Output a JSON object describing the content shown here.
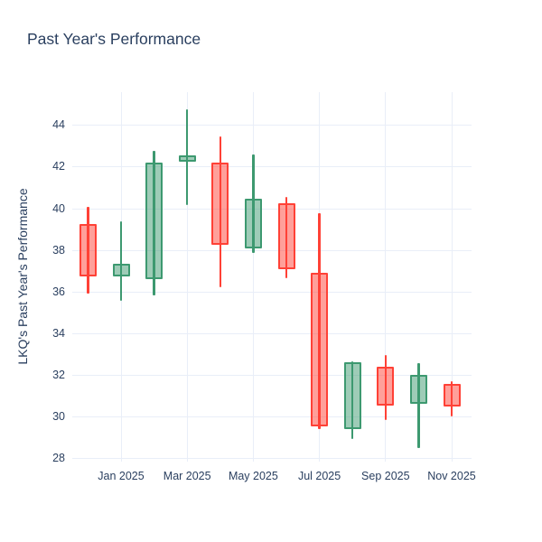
{
  "page": {
    "title": "Past Year's Performance",
    "background": "#ffffff"
  },
  "chart_data": {
    "type": "candlestick",
    "title": "Past Year's Performance",
    "xlabel": "",
    "ylabel": "LKQ's Past Year's Performance",
    "legend": "none",
    "grid": true,
    "ylim": [
      27.82,
      45.58
    ],
    "y_ticks": [
      28,
      30,
      32,
      34,
      36,
      38,
      40,
      42,
      44
    ],
    "x_tick_labels": [
      "Jan 2025",
      "Mar 2025",
      "May 2025",
      "Jul 2025",
      "Sep 2025",
      "Nov 2025"
    ],
    "x_tick_indices": [
      1,
      3,
      5,
      7,
      9,
      11
    ],
    "candles": [
      {
        "x": "Dec 2024",
        "open": 39.25,
        "high": 40.05,
        "low": 35.9,
        "close": 36.7,
        "direction": "decreasing"
      },
      {
        "x": "Jan 2025",
        "open": 36.7,
        "high": 39.35,
        "low": 35.55,
        "close": 37.35,
        "direction": "increasing"
      },
      {
        "x": "Feb 2025",
        "open": 36.6,
        "high": 42.75,
        "low": 35.8,
        "close": 42.2,
        "direction": "increasing"
      },
      {
        "x": "Mar 2025",
        "open": 42.25,
        "high": 44.75,
        "low": 40.15,
        "close": 42.55,
        "direction": "increasing"
      },
      {
        "x": "Apr 2025",
        "open": 42.2,
        "high": 43.45,
        "low": 36.2,
        "close": 38.25,
        "direction": "decreasing"
      },
      {
        "x": "May 2025",
        "open": 38.05,
        "high": 42.6,
        "low": 37.85,
        "close": 40.45,
        "direction": "increasing"
      },
      {
        "x": "Jun 2025",
        "open": 40.25,
        "high": 40.55,
        "low": 36.65,
        "close": 37.05,
        "direction": "decreasing"
      },
      {
        "x": "Jul 2025",
        "open": 36.9,
        "high": 39.75,
        "low": 29.4,
        "close": 29.5,
        "direction": "decreasing"
      },
      {
        "x": "Aug 2025",
        "open": 29.4,
        "high": 32.65,
        "low": 28.9,
        "close": 32.6,
        "direction": "increasing"
      },
      {
        "x": "Sep 2025",
        "open": 32.4,
        "high": 32.95,
        "low": 29.8,
        "close": 30.5,
        "direction": "decreasing"
      },
      {
        "x": "Oct 2025",
        "open": 30.6,
        "high": 32.55,
        "low": 28.45,
        "close": 32.0,
        "direction": "increasing"
      },
      {
        "x": "Nov 2025",
        "open": 31.55,
        "high": 31.7,
        "low": 30.0,
        "close": 30.45,
        "direction": "decreasing"
      }
    ],
    "colors": {
      "increasing_line": "#3D9970",
      "increasing_fill": "rgba(61,153,112,0.5)",
      "decreasing_line": "#FF4136",
      "decreasing_fill": "rgba(255,65,54,0.5)",
      "text": "#2a3f5f",
      "gridline": "#e9eef8",
      "background": "#ffffff"
    }
  }
}
